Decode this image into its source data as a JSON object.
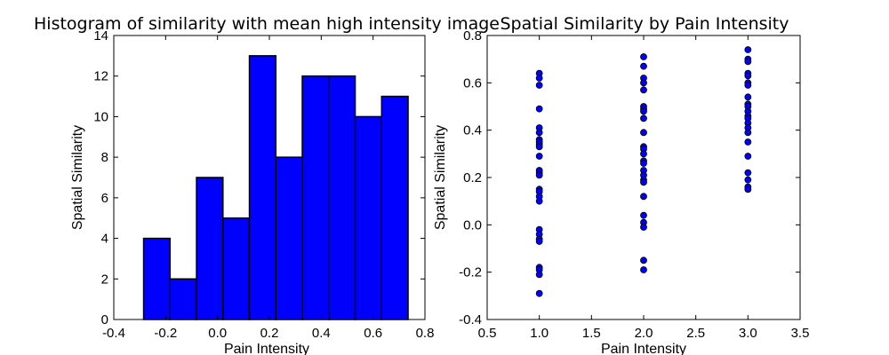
{
  "chart_data": [
    {
      "type": "bar",
      "title": "Histogram of similarity with mean high intensity image",
      "xlabel": "Pain Intensity",
      "ylabel": "Spatial Similarity",
      "xlim": [
        -0.4,
        0.8
      ],
      "ylim": [
        0,
        14
      ],
      "xticks": [
        "-0.4",
        "-0.2",
        "0.0",
        "0.2",
        "0.4",
        "0.6",
        "0.8"
      ],
      "yticks": [
        "0",
        "2",
        "4",
        "6",
        "8",
        "10",
        "12",
        "14"
      ],
      "bin_edges": [
        -0.285,
        -0.183,
        -0.081,
        0.021,
        0.123,
        0.225,
        0.327,
        0.429,
        0.531,
        0.633,
        0.735
      ],
      "values": [
        4,
        2,
        7,
        5,
        13,
        8,
        12,
        12,
        10,
        11
      ],
      "bar_color": "#0000ff",
      "grid": false
    },
    {
      "type": "scatter",
      "title": "Spatial Similarity by Pain Intensity",
      "xlabel": "Pain Intensity",
      "ylabel": "Spatial Similarity",
      "xlim": [
        0.5,
        3.5
      ],
      "ylim": [
        -0.4,
        0.8
      ],
      "xticks": [
        "0.5",
        "1.0",
        "1.5",
        "2.0",
        "2.5",
        "3.0",
        "3.5"
      ],
      "yticks": [
        "-0.4",
        "-0.2",
        "0.0",
        "0.2",
        "0.4",
        "0.6",
        "0.8"
      ],
      "series": [
        {
          "x": 1.0,
          "y": [
            0.64,
            0.62,
            0.59,
            0.49,
            0.41,
            0.39,
            0.36,
            0.35,
            0.34,
            0.33,
            0.29,
            0.23,
            0.22,
            0.21,
            0.15,
            0.14,
            0.12,
            0.1,
            -0.02,
            -0.04,
            -0.06,
            -0.07,
            -0.18,
            -0.19,
            -0.21,
            -0.29
          ]
        },
        {
          "x": 2.0,
          "y": [
            0.71,
            0.67,
            0.62,
            0.6,
            0.57,
            0.5,
            0.49,
            0.48,
            0.45,
            0.39,
            0.33,
            0.32,
            0.3,
            0.27,
            0.26,
            0.23,
            0.21,
            0.19,
            0.18,
            0.12,
            0.04,
            0.01,
            -0.01,
            -0.15,
            -0.19
          ]
        },
        {
          "x": 3.0,
          "y": [
            0.74,
            0.7,
            0.69,
            0.64,
            0.63,
            0.6,
            0.59,
            0.54,
            0.51,
            0.5,
            0.48,
            0.46,
            0.45,
            0.43,
            0.41,
            0.39,
            0.35,
            0.29,
            0.22,
            0.19,
            0.16,
            0.15
          ]
        }
      ],
      "marker_color": "#0000ff",
      "grid": false
    }
  ]
}
